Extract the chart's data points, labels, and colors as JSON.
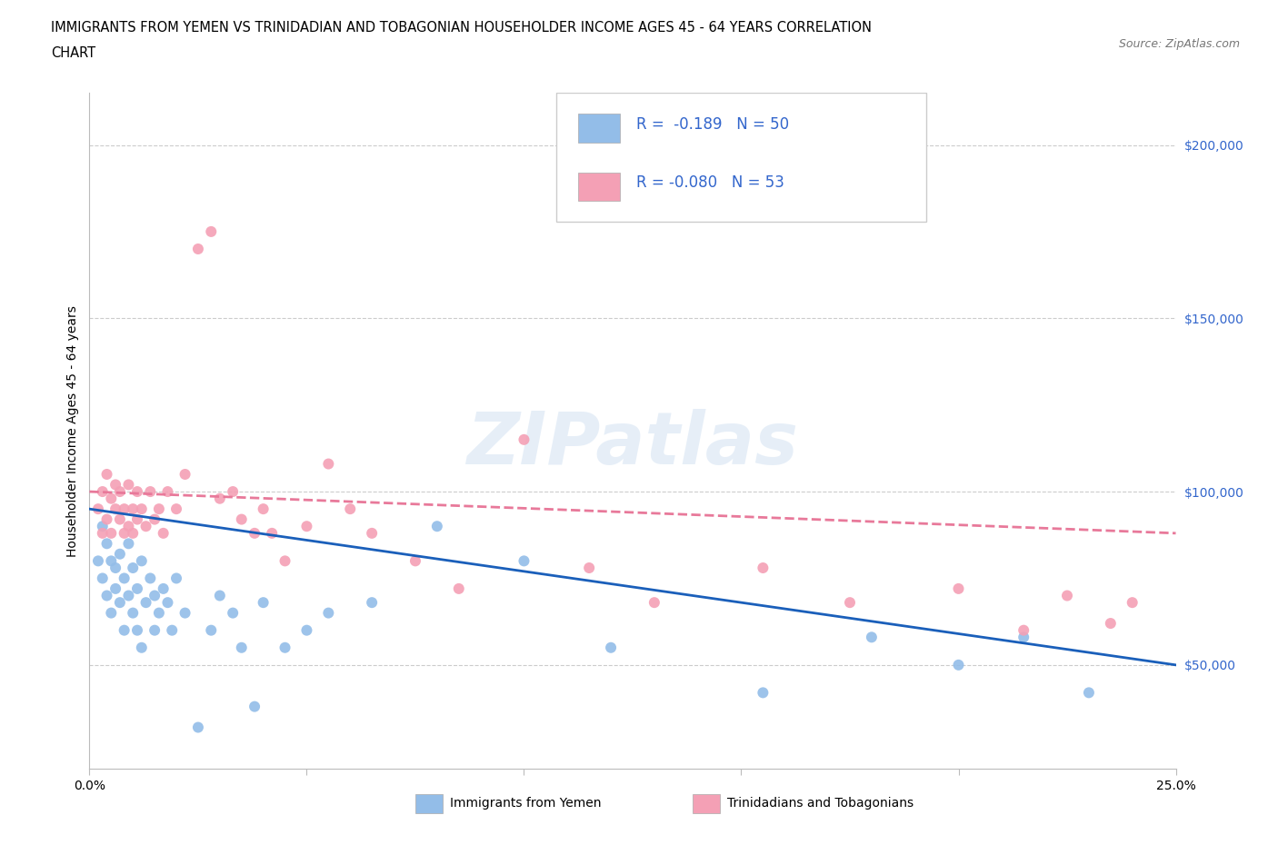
{
  "title_line1": "IMMIGRANTS FROM YEMEN VS TRINIDADIAN AND TOBAGONIAN HOUSEHOLDER INCOME AGES 45 - 64 YEARS CORRELATION",
  "title_line2": "CHART",
  "source_text": "Source: ZipAtlas.com",
  "ylabel": "Householder Income Ages 45 - 64 years",
  "xlim": [
    0.0,
    0.25
  ],
  "ylim": [
    20000,
    215000
  ],
  "yticks": [
    50000,
    100000,
    150000,
    200000
  ],
  "ytick_labels": [
    "$50,000",
    "$100,000",
    "$150,000",
    "$200,000"
  ],
  "xticks": [
    0.0,
    0.05,
    0.1,
    0.15,
    0.2,
    0.25
  ],
  "xtick_labels": [
    "0.0%",
    "",
    "",
    "",
    "",
    "25.0%"
  ],
  "background_color": "#ffffff",
  "grid_color": "#cccccc",
  "watermark_text": "ZIPatlas",
  "legend_label1": "Immigrants from Yemen",
  "legend_label2": "Trinidadians and Tobagonians",
  "series1_color": "#93bde8",
  "series2_color": "#f4a0b5",
  "line1_color": "#1a5fba",
  "line2_color": "#e8799a",
  "legend_box_color": "#93bde8",
  "legend_box_color2": "#f4a0b5",
  "legend_text_color": "#3366cc",
  "series1_x": [
    0.002,
    0.003,
    0.003,
    0.004,
    0.004,
    0.005,
    0.005,
    0.006,
    0.006,
    0.007,
    0.007,
    0.008,
    0.008,
    0.009,
    0.009,
    0.01,
    0.01,
    0.011,
    0.011,
    0.012,
    0.012,
    0.013,
    0.014,
    0.015,
    0.015,
    0.016,
    0.017,
    0.018,
    0.019,
    0.02,
    0.022,
    0.025,
    0.028,
    0.03,
    0.033,
    0.035,
    0.038,
    0.04,
    0.045,
    0.05,
    0.055,
    0.065,
    0.08,
    0.1,
    0.12,
    0.155,
    0.18,
    0.2,
    0.215,
    0.23
  ],
  "series1_y": [
    80000,
    90000,
    75000,
    85000,
    70000,
    80000,
    65000,
    78000,
    72000,
    68000,
    82000,
    75000,
    60000,
    85000,
    70000,
    65000,
    78000,
    60000,
    72000,
    80000,
    55000,
    68000,
    75000,
    70000,
    60000,
    65000,
    72000,
    68000,
    60000,
    75000,
    65000,
    32000,
    60000,
    70000,
    65000,
    55000,
    38000,
    68000,
    55000,
    60000,
    65000,
    68000,
    90000,
    80000,
    55000,
    42000,
    58000,
    50000,
    58000,
    42000
  ],
  "series2_x": [
    0.002,
    0.003,
    0.003,
    0.004,
    0.004,
    0.005,
    0.005,
    0.006,
    0.006,
    0.007,
    0.007,
    0.008,
    0.008,
    0.009,
    0.009,
    0.01,
    0.01,
    0.011,
    0.011,
    0.012,
    0.013,
    0.014,
    0.015,
    0.016,
    0.017,
    0.018,
    0.02,
    0.022,
    0.025,
    0.028,
    0.03,
    0.033,
    0.035,
    0.038,
    0.04,
    0.042,
    0.045,
    0.05,
    0.055,
    0.06,
    0.065,
    0.075,
    0.085,
    0.1,
    0.115,
    0.13,
    0.155,
    0.175,
    0.2,
    0.215,
    0.225,
    0.235,
    0.24
  ],
  "series2_y": [
    95000,
    100000,
    88000,
    105000,
    92000,
    98000,
    88000,
    102000,
    95000,
    92000,
    100000,
    95000,
    88000,
    102000,
    90000,
    95000,
    88000,
    100000,
    92000,
    95000,
    90000,
    100000,
    92000,
    95000,
    88000,
    100000,
    95000,
    105000,
    170000,
    175000,
    98000,
    100000,
    92000,
    88000,
    95000,
    88000,
    80000,
    90000,
    108000,
    95000,
    88000,
    80000,
    72000,
    115000,
    78000,
    68000,
    78000,
    68000,
    72000,
    60000,
    70000,
    62000,
    68000
  ],
  "line1_x0": 0.0,
  "line1_x1": 0.25,
  "line1_y0": 95000,
  "line1_y1": 50000,
  "line2_x0": 0.0,
  "line2_x1": 0.25,
  "line2_y0": 100000,
  "line2_y1": 88000
}
